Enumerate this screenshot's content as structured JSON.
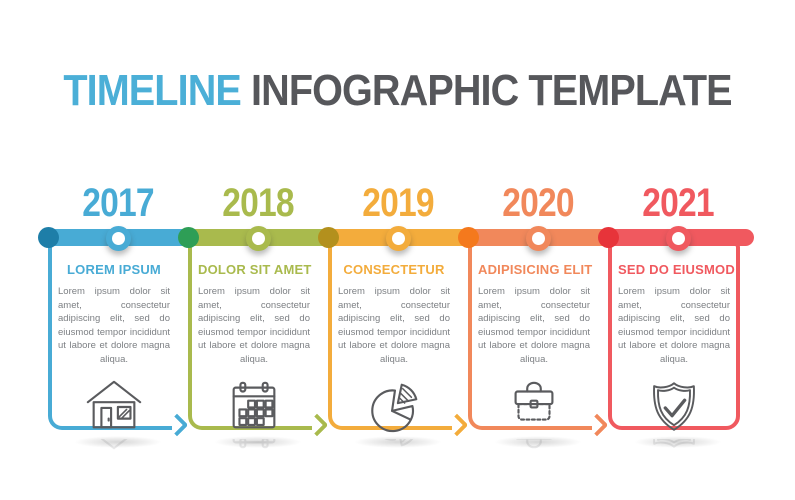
{
  "title": {
    "highlight": "TIMELINE",
    "rest": "INFOGRAPHIC TEMPLATE"
  },
  "colors": {
    "title_accent": "#4BAFD7",
    "title_main": "#56575B",
    "body_text": "#7D8084",
    "icon_stroke": "#5A5B5E",
    "background": "#FFFFFF"
  },
  "columns": [
    {
      "year": "2017",
      "heading": "LOREM IPSUM",
      "body": "Lorem ipsum dolor sit amet, consectetur adipiscing elit, sed do eiusmod tempor incididunt ut labore et dolore magna aliqua.",
      "icon": "house-icon",
      "bar_color": "#48ABD5",
      "dot_color": "#1E7EA8"
    },
    {
      "year": "2018",
      "heading": "DOLOR SIT AMET",
      "body": "Lorem ipsum dolor sit amet, consectetur adipiscing elit, sed do eiusmod tempor incididunt ut labore et dolore magna aliqua.",
      "icon": "calendar-icon",
      "bar_color": "#A9BA4D",
      "dot_color": "#2E9E56"
    },
    {
      "year": "2019",
      "heading": "CONSECTETUR",
      "body": "Lorem ipsum dolor sit amet, consectetur adipiscing elit, sed do eiusmod tempor incididunt ut labore et dolore magna aliqua.",
      "icon": "pie-chart-icon",
      "bar_color": "#F3AC3C",
      "dot_color": "#B3901D"
    },
    {
      "year": "2020",
      "heading": "ADIPISICING ELIT",
      "body": "Lorem ipsum dolor sit amet, consectetur adipiscing elit, sed do eiusmod tempor incididunt ut labore et dolore magna aliqua.",
      "icon": "briefcase-icon",
      "bar_color": "#F1885B",
      "dot_color": "#F4791D"
    },
    {
      "year": "2021",
      "heading": "SED DO EIUSMOD",
      "body": "Lorem ipsum dolor sit amet, consectetur adipiscing elit, sed do eiusmod tempor incididunt ut labore et dolore magna aliqua.",
      "icon": "shield-check-icon",
      "bar_color": "#F0595F",
      "dot_color": "#E7343A"
    }
  ]
}
